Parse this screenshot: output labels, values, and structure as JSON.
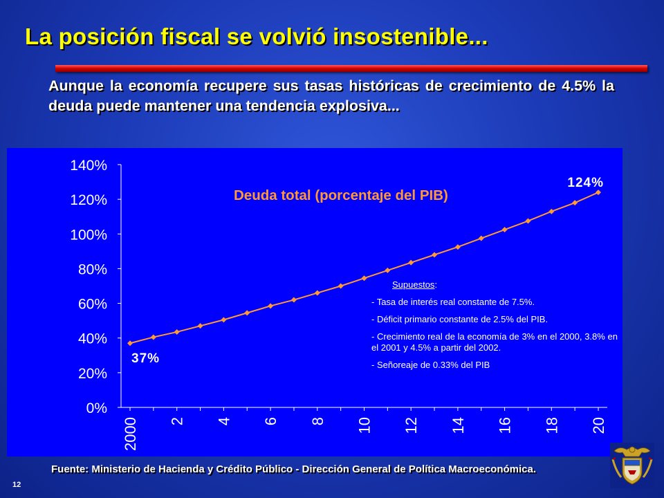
{
  "slide": {
    "title": "La posición fiscal se volvió insostenible...",
    "subtitle": "Aunque la economía recupere sus tasas históricas de crecimiento de 4.5% la deuda puede mantener una tendencia explosiva...",
    "source": "Fuente: Ministerio de Hacienda y Crédito Público - Dirección General de Política Macroeconómica.",
    "page_number": "12",
    "colors": {
      "title": "#ffff00",
      "rule": "#d40000",
      "chart_background": "#0000ff",
      "series": "#ff9933"
    }
  },
  "chart_data": {
    "type": "line",
    "title": "Deuda total (porcentaje del PIB)",
    "xlabel": "",
    "ylabel": "",
    "x": [
      2000,
      2001,
      2002,
      2003,
      2004,
      2005,
      2006,
      2007,
      2008,
      2009,
      2010,
      2011,
      2012,
      2013,
      2014,
      2015,
      2016,
      2017,
      2018,
      2019,
      2020
    ],
    "x_tick_labels": [
      "2000",
      "2",
      "4",
      "6",
      "8",
      "10",
      "12",
      "14",
      "16",
      "18",
      "20"
    ],
    "y_tick_labels": [
      "0%",
      "20%",
      "40%",
      "60%",
      "80%",
      "100%",
      "120%",
      "140%"
    ],
    "ylim": [
      0,
      140
    ],
    "yticks": [
      0,
      20,
      40,
      60,
      80,
      100,
      120,
      140
    ],
    "series": [
      {
        "name": "",
        "color": "#ff9933",
        "marker": "diamond",
        "values": [
          37,
          40.5,
          43.5,
          47,
          50.5,
          54.5,
          58.5,
          62,
          66,
          70,
          74.5,
          79,
          83.5,
          88,
          92.5,
          97.5,
          102.5,
          107.5,
          113,
          118,
          124
        ]
      }
    ],
    "annotations": {
      "start_label": "37%",
      "end_label": "124%"
    },
    "grid": false,
    "legend": "none"
  },
  "assumptions": {
    "heading": "Supuestos",
    "heading_suffix": ":",
    "items": [
      "- Tasa de interés real constante de 7.5%.",
      "- Déficit primario constante de 2.5% del PIB.",
      "- Crecimiento real de la economía de 3% en el 2000, 3.8% en el 2001 y 4.5% a partir del 2002.",
      "- Señoreaje de 0.33% del PIB"
    ]
  }
}
